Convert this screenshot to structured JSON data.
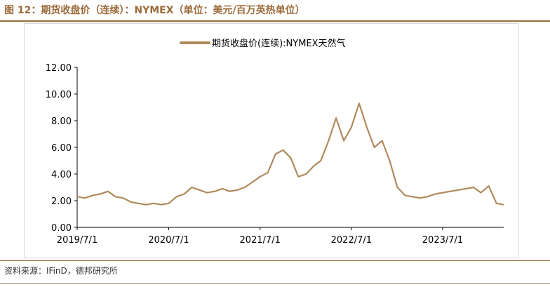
{
  "figure_title": "图 12：期货收盘价（连续）：NYMEX（单位：美元/百万英热单位）",
  "source_note": "资料来源：IFinD，德邦研究所",
  "colors": {
    "line": "#b08a5c",
    "accent": "#9c6b3a"
  },
  "chart_data": {
    "type": "line",
    "title": "",
    "xlabel": "",
    "ylabel": "",
    "ylim": [
      0,
      12
    ],
    "yticks": [
      "0.00",
      "2.00",
      "4.00",
      "6.00",
      "8.00",
      "10.00",
      "12.00"
    ],
    "xticks": [
      "2019/7/1",
      "2020/7/1",
      "2021/7/1",
      "2022/7/1",
      "2023/7/1"
    ],
    "legend": "top-center",
    "grid": false,
    "series": [
      {
        "name": "期货收盘价(连续):NYMEX天然气",
        "x": [
          "2019/7/1",
          "2019/8/1",
          "2019/9/1",
          "2019/10/1",
          "2019/11/1",
          "2019/12/1",
          "2020/1/1",
          "2020/2/1",
          "2020/3/1",
          "2020/4/1",
          "2020/5/1",
          "2020/6/1",
          "2020/7/1",
          "2020/8/1",
          "2020/9/1",
          "2020/10/1",
          "2020/11/1",
          "2020/12/1",
          "2021/1/1",
          "2021/2/1",
          "2021/3/1",
          "2021/4/1",
          "2021/5/1",
          "2021/6/1",
          "2021/7/1",
          "2021/8/1",
          "2021/9/1",
          "2021/10/1",
          "2021/11/1",
          "2021/12/1",
          "2022/1/1",
          "2022/2/1",
          "2022/3/1",
          "2022/4/1",
          "2022/5/1",
          "2022/6/1",
          "2022/7/1",
          "2022/8/1",
          "2022/9/1",
          "2022/10/1",
          "2022/11/1",
          "2022/12/1",
          "2023/1/1",
          "2023/2/1",
          "2023/3/1",
          "2023/4/1",
          "2023/5/1",
          "2023/6/1",
          "2023/7/1",
          "2023/8/1",
          "2023/9/1",
          "2023/10/1",
          "2023/11/1",
          "2023/12/1",
          "2024/1/1",
          "2024/2/1",
          "2024/3/1"
        ],
        "values": [
          2.3,
          2.2,
          2.4,
          2.5,
          2.7,
          2.3,
          2.2,
          1.9,
          1.8,
          1.7,
          1.8,
          1.7,
          1.8,
          2.3,
          2.5,
          3.0,
          2.8,
          2.6,
          2.7,
          2.9,
          2.7,
          2.8,
          3.0,
          3.4,
          3.8,
          4.1,
          5.5,
          5.8,
          5.2,
          3.8,
          4.0,
          4.6,
          5.0,
          6.5,
          8.2,
          6.5,
          7.5,
          9.3,
          7.5,
          6.0,
          6.5,
          5.0,
          3.0,
          2.4,
          2.3,
          2.2,
          2.3,
          2.5,
          2.6,
          2.7,
          2.8,
          2.9,
          3.0,
          2.6,
          3.1,
          1.8,
          1.7
        ]
      }
    ]
  }
}
